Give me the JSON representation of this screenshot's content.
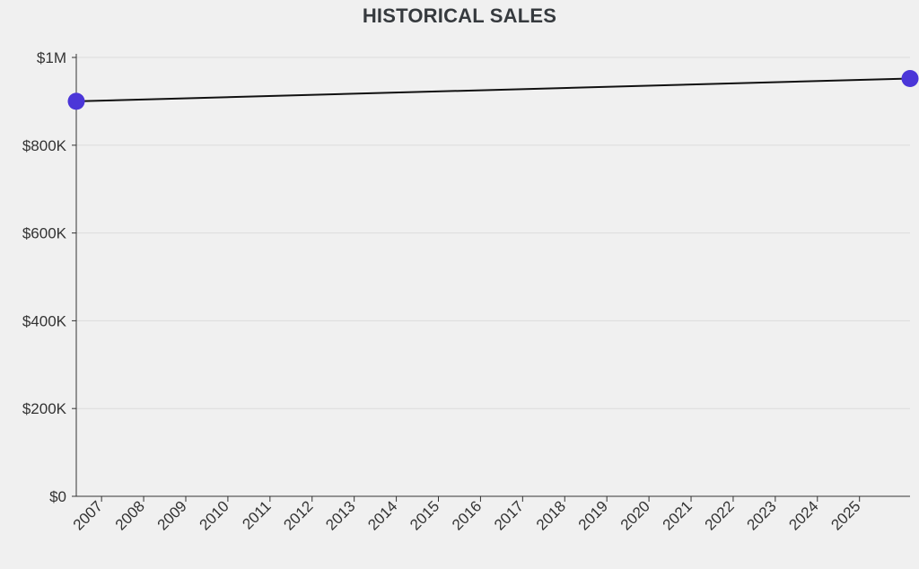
{
  "chart_data": {
    "type": "line",
    "title": "HISTORICAL SALES",
    "xlabel": "",
    "ylabel": "",
    "x_ticks": [
      "2007",
      "2008",
      "2009",
      "2010",
      "2011",
      "2012",
      "2013",
      "2014",
      "2015",
      "2016",
      "2017",
      "2018",
      "2019",
      "2020",
      "2021",
      "2022",
      "2023",
      "2024",
      "2025"
    ],
    "y_ticks": [
      {
        "value": 0,
        "label": "$0"
      },
      {
        "value": 200000,
        "label": "$200K"
      },
      {
        "value": 400000,
        "label": "$400K"
      },
      {
        "value": 600000,
        "label": "$600K"
      },
      {
        "value": 800000,
        "label": "$800K"
      },
      {
        "value": 1000000,
        "label": "$1M"
      }
    ],
    "ylim": [
      0,
      1000000
    ],
    "xlim": [
      2006.4,
      2026.2
    ],
    "grid": "horizontal",
    "series": [
      {
        "points": [
          {
            "x": 2006.4,
            "y": 900000
          },
          {
            "x": 2026.2,
            "y": 952000
          }
        ]
      }
    ],
    "colors": {
      "line": "#111111",
      "marker": "#4b36d8",
      "grid": "#dcdcdc",
      "axis": "#333333",
      "background": "#f0f0f0"
    }
  }
}
